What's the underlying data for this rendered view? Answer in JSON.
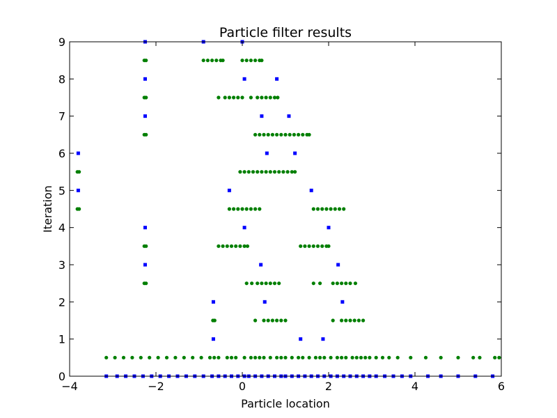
{
  "chart_data": {
    "type": "scatter",
    "title": "Particle filter results",
    "xlabel": "Particle location",
    "ylabel": "Iteration",
    "xlim": [
      -4,
      6
    ],
    "ylim": [
      0,
      9
    ],
    "x_ticks": [
      -4,
      -2,
      0,
      2,
      4,
      6
    ],
    "x_tick_labels": [
      "−4",
      "−2",
      "0",
      "2",
      "4",
      "6"
    ],
    "y_ticks": [
      0,
      1,
      2,
      3,
      4,
      5,
      6,
      7,
      8,
      9
    ],
    "y_tick_labels": [
      "0",
      "1",
      "2",
      "3",
      "4",
      "5",
      "6",
      "7",
      "8",
      "9"
    ],
    "grid": false,
    "colors": {
      "blue": "#0000ff",
      "green": "#007f00"
    },
    "series": [
      {
        "color": "blue",
        "marker": "square",
        "points": [
          {
            "x": -3.15,
            "y": 0
          },
          {
            "x": -2.9,
            "y": 0
          },
          {
            "x": -2.7,
            "y": 0
          },
          {
            "x": -2.5,
            "y": 0
          },
          {
            "x": -2.3,
            "y": 0
          },
          {
            "x": -2.1,
            "y": 0
          },
          {
            "x": -1.9,
            "y": 0
          },
          {
            "x": -1.7,
            "y": 0
          },
          {
            "x": -1.5,
            "y": 0
          },
          {
            "x": -1.3,
            "y": 0
          },
          {
            "x": -1.1,
            "y": 0
          },
          {
            "x": -0.9,
            "y": 0
          },
          {
            "x": -0.7,
            "y": 0
          },
          {
            "x": -0.55,
            "y": 0
          },
          {
            "x": -0.4,
            "y": 0
          },
          {
            "x": -0.25,
            "y": 0
          },
          {
            "x": -0.1,
            "y": 0
          },
          {
            "x": 0.05,
            "y": 0
          },
          {
            "x": 0.15,
            "y": 0
          },
          {
            "x": 0.3,
            "y": 0
          },
          {
            "x": 0.45,
            "y": 0
          },
          {
            "x": 0.6,
            "y": 0
          },
          {
            "x": 0.75,
            "y": 0
          },
          {
            "x": 0.9,
            "y": 0
          },
          {
            "x": 1.0,
            "y": 0
          },
          {
            "x": 1.15,
            "y": 0
          },
          {
            "x": 1.3,
            "y": 0
          },
          {
            "x": 1.45,
            "y": 0
          },
          {
            "x": 1.6,
            "y": 0
          },
          {
            "x": 1.75,
            "y": 0
          },
          {
            "x": 1.9,
            "y": 0
          },
          {
            "x": 2.05,
            "y": 0
          },
          {
            "x": 2.2,
            "y": 0
          },
          {
            "x": 2.35,
            "y": 0
          },
          {
            "x": 2.5,
            "y": 0
          },
          {
            "x": 2.65,
            "y": 0
          },
          {
            "x": 2.8,
            "y": 0
          },
          {
            "x": 2.95,
            "y": 0
          },
          {
            "x": 3.1,
            "y": 0
          },
          {
            "x": 3.3,
            "y": 0
          },
          {
            "x": 3.5,
            "y": 0
          },
          {
            "x": 3.7,
            "y": 0
          },
          {
            "x": 3.9,
            "y": 0
          },
          {
            "x": 4.3,
            "y": 0
          },
          {
            "x": 4.6,
            "y": 0
          },
          {
            "x": 5.0,
            "y": 0
          },
          {
            "x": 5.4,
            "y": 0
          },
          {
            "x": 5.8,
            "y": 0
          },
          {
            "x": -0.67,
            "y": 1
          },
          {
            "x": 1.35,
            "y": 1
          },
          {
            "x": 1.87,
            "y": 1
          },
          {
            "x": -0.67,
            "y": 2
          },
          {
            "x": 0.52,
            "y": 2
          },
          {
            "x": 2.32,
            "y": 2
          },
          {
            "x": -2.25,
            "y": 3
          },
          {
            "x": 0.43,
            "y": 3
          },
          {
            "x": 2.22,
            "y": 3
          },
          {
            "x": -2.25,
            "y": 4
          },
          {
            "x": 0.05,
            "y": 4
          },
          {
            "x": 2.0,
            "y": 4
          },
          {
            "x": -3.8,
            "y": 5
          },
          {
            "x": -0.3,
            "y": 5
          },
          {
            "x": 1.6,
            "y": 5
          },
          {
            "x": -3.8,
            "y": 6
          },
          {
            "x": 0.57,
            "y": 6
          },
          {
            "x": 1.22,
            "y": 6
          },
          {
            "x": -2.25,
            "y": 7
          },
          {
            "x": 0.45,
            "y": 7
          },
          {
            "x": 1.08,
            "y": 7
          },
          {
            "x": -2.25,
            "y": 8
          },
          {
            "x": 0.05,
            "y": 8
          },
          {
            "x": 0.8,
            "y": 8
          },
          {
            "x": -2.25,
            "y": 9
          },
          {
            "x": -0.9,
            "y": 9
          },
          {
            "x": 0.0,
            "y": 9
          }
        ]
      },
      {
        "color": "green",
        "marker": "circle",
        "points": [
          {
            "x": -3.15,
            "y": 0.5
          },
          {
            "x": -2.95,
            "y": 0.5
          },
          {
            "x": -2.75,
            "y": 0.5
          },
          {
            "x": -2.55,
            "y": 0.5
          },
          {
            "x": -2.35,
            "y": 0.5
          },
          {
            "x": -2.15,
            "y": 0.5
          },
          {
            "x": -1.95,
            "y": 0.5
          },
          {
            "x": -1.75,
            "y": 0.5
          },
          {
            "x": -1.55,
            "y": 0.5
          },
          {
            "x": -1.35,
            "y": 0.5
          },
          {
            "x": -1.15,
            "y": 0.5
          },
          {
            "x": -0.95,
            "y": 0.5
          },
          {
            "x": -0.75,
            "y": 0.5
          },
          {
            "x": -0.65,
            "y": 0.5
          },
          {
            "x": -0.55,
            "y": 0.5
          },
          {
            "x": -0.35,
            "y": 0.5
          },
          {
            "x": -0.25,
            "y": 0.5
          },
          {
            "x": -0.15,
            "y": 0.5
          },
          {
            "x": 0.05,
            "y": 0.5
          },
          {
            "x": 0.2,
            "y": 0.5
          },
          {
            "x": 0.3,
            "y": 0.5
          },
          {
            "x": 0.4,
            "y": 0.5
          },
          {
            "x": 0.5,
            "y": 0.5
          },
          {
            "x": 0.65,
            "y": 0.5
          },
          {
            "x": 0.8,
            "y": 0.5
          },
          {
            "x": 0.9,
            "y": 0.5
          },
          {
            "x": 1.0,
            "y": 0.5
          },
          {
            "x": 1.15,
            "y": 0.5
          },
          {
            "x": 1.3,
            "y": 0.5
          },
          {
            "x": 1.4,
            "y": 0.5
          },
          {
            "x": 1.55,
            "y": 0.5
          },
          {
            "x": 1.7,
            "y": 0.5
          },
          {
            "x": 1.8,
            "y": 0.5
          },
          {
            "x": 1.9,
            "y": 0.5
          },
          {
            "x": 2.05,
            "y": 0.5
          },
          {
            "x": 2.2,
            "y": 0.5
          },
          {
            "x": 2.3,
            "y": 0.5
          },
          {
            "x": 2.4,
            "y": 0.5
          },
          {
            "x": 2.55,
            "y": 0.5
          },
          {
            "x": 2.65,
            "y": 0.5
          },
          {
            "x": 2.75,
            "y": 0.5
          },
          {
            "x": 2.85,
            "y": 0.5
          },
          {
            "x": 2.95,
            "y": 0.5
          },
          {
            "x": 3.1,
            "y": 0.5
          },
          {
            "x": 3.25,
            "y": 0.5
          },
          {
            "x": 3.4,
            "y": 0.5
          },
          {
            "x": 3.6,
            "y": 0.5
          },
          {
            "x": 3.9,
            "y": 0.5
          },
          {
            "x": 4.25,
            "y": 0.5
          },
          {
            "x": 4.6,
            "y": 0.5
          },
          {
            "x": 5.0,
            "y": 0.5
          },
          {
            "x": 5.35,
            "y": 0.5
          },
          {
            "x": 5.5,
            "y": 0.5
          },
          {
            "x": 5.85,
            "y": 0.5
          },
          {
            "x": 5.95,
            "y": 0.5
          },
          {
            "x": -0.68,
            "y": 1.5
          },
          {
            "x": -0.64,
            "y": 1.5
          },
          {
            "x": 0.3,
            "y": 1.5
          },
          {
            "x": 0.5,
            "y": 1.5
          },
          {
            "x": 0.6,
            "y": 1.5
          },
          {
            "x": 0.7,
            "y": 1.5
          },
          {
            "x": 0.8,
            "y": 1.5
          },
          {
            "x": 0.9,
            "y": 1.5
          },
          {
            "x": 1.0,
            "y": 1.5
          },
          {
            "x": 2.1,
            "y": 1.5
          },
          {
            "x": 2.3,
            "y": 1.5
          },
          {
            "x": 2.4,
            "y": 1.5
          },
          {
            "x": 2.5,
            "y": 1.5
          },
          {
            "x": 2.6,
            "y": 1.5
          },
          {
            "x": 2.7,
            "y": 1.5
          },
          {
            "x": 2.8,
            "y": 1.5
          },
          {
            "x": -2.27,
            "y": 2.5
          },
          {
            "x": -2.23,
            "y": 2.5
          },
          {
            "x": 0.1,
            "y": 2.5
          },
          {
            "x": 0.22,
            "y": 2.5
          },
          {
            "x": 0.35,
            "y": 2.5
          },
          {
            "x": 0.45,
            "y": 2.5
          },
          {
            "x": 0.55,
            "y": 2.5
          },
          {
            "x": 0.65,
            "y": 2.5
          },
          {
            "x": 0.75,
            "y": 2.5
          },
          {
            "x": 0.85,
            "y": 2.5
          },
          {
            "x": 1.65,
            "y": 2.5
          },
          {
            "x": 1.8,
            "y": 2.5
          },
          {
            "x": 2.1,
            "y": 2.5
          },
          {
            "x": 2.2,
            "y": 2.5
          },
          {
            "x": 2.3,
            "y": 2.5
          },
          {
            "x": 2.4,
            "y": 2.5
          },
          {
            "x": 2.5,
            "y": 2.5
          },
          {
            "x": 2.62,
            "y": 2.5
          },
          {
            "x": -2.27,
            "y": 3.5
          },
          {
            "x": -2.23,
            "y": 3.5
          },
          {
            "x": -0.55,
            "y": 3.5
          },
          {
            "x": -0.45,
            "y": 3.5
          },
          {
            "x": -0.35,
            "y": 3.5
          },
          {
            "x": -0.25,
            "y": 3.5
          },
          {
            "x": -0.15,
            "y": 3.5
          },
          {
            "x": -0.05,
            "y": 3.5
          },
          {
            "x": 0.05,
            "y": 3.5
          },
          {
            "x": 0.12,
            "y": 3.5
          },
          {
            "x": 1.35,
            "y": 3.5
          },
          {
            "x": 1.45,
            "y": 3.5
          },
          {
            "x": 1.55,
            "y": 3.5
          },
          {
            "x": 1.65,
            "y": 3.5
          },
          {
            "x": 1.75,
            "y": 3.5
          },
          {
            "x": 1.85,
            "y": 3.5
          },
          {
            "x": 1.95,
            "y": 3.5
          },
          {
            "x": 2.0,
            "y": 3.5
          },
          {
            "x": -3.82,
            "y": 4.5
          },
          {
            "x": -3.78,
            "y": 4.5
          },
          {
            "x": -0.3,
            "y": 4.5
          },
          {
            "x": -0.2,
            "y": 4.5
          },
          {
            "x": -0.1,
            "y": 4.5
          },
          {
            "x": 0.0,
            "y": 4.5
          },
          {
            "x": 0.1,
            "y": 4.5
          },
          {
            "x": 0.2,
            "y": 4.5
          },
          {
            "x": 0.3,
            "y": 4.5
          },
          {
            "x": 0.4,
            "y": 4.5
          },
          {
            "x": 1.65,
            "y": 4.5
          },
          {
            "x": 1.75,
            "y": 4.5
          },
          {
            "x": 1.85,
            "y": 4.5
          },
          {
            "x": 1.95,
            "y": 4.5
          },
          {
            "x": 2.05,
            "y": 4.5
          },
          {
            "x": 2.15,
            "y": 4.5
          },
          {
            "x": 2.25,
            "y": 4.5
          },
          {
            "x": 2.35,
            "y": 4.5
          },
          {
            "x": -3.82,
            "y": 5.5
          },
          {
            "x": -3.78,
            "y": 5.5
          },
          {
            "x": -0.05,
            "y": 5.5
          },
          {
            "x": 0.05,
            "y": 5.5
          },
          {
            "x": 0.15,
            "y": 5.5
          },
          {
            "x": 0.25,
            "y": 5.5
          },
          {
            "x": 0.35,
            "y": 5.5
          },
          {
            "x": 0.45,
            "y": 5.5
          },
          {
            "x": 0.55,
            "y": 5.5
          },
          {
            "x": 0.65,
            "y": 5.5
          },
          {
            "x": 0.75,
            "y": 5.5
          },
          {
            "x": 0.85,
            "y": 5.5
          },
          {
            "x": 0.95,
            "y": 5.5
          },
          {
            "x": 1.05,
            "y": 5.5
          },
          {
            "x": 1.15,
            "y": 5.5
          },
          {
            "x": 1.22,
            "y": 5.5
          },
          {
            "x": -2.27,
            "y": 6.5
          },
          {
            "x": -2.23,
            "y": 6.5
          },
          {
            "x": 0.3,
            "y": 6.5
          },
          {
            "x": 0.4,
            "y": 6.5
          },
          {
            "x": 0.5,
            "y": 6.5
          },
          {
            "x": 0.6,
            "y": 6.5
          },
          {
            "x": 0.7,
            "y": 6.5
          },
          {
            "x": 0.8,
            "y": 6.5
          },
          {
            "x": 0.9,
            "y": 6.5
          },
          {
            "x": 1.0,
            "y": 6.5
          },
          {
            "x": 1.1,
            "y": 6.5
          },
          {
            "x": 1.2,
            "y": 6.5
          },
          {
            "x": 1.3,
            "y": 6.5
          },
          {
            "x": 1.4,
            "y": 6.5
          },
          {
            "x": 1.5,
            "y": 6.5
          },
          {
            "x": 1.55,
            "y": 6.5
          },
          {
            "x": -2.27,
            "y": 7.5
          },
          {
            "x": -2.23,
            "y": 7.5
          },
          {
            "x": -0.55,
            "y": 7.5
          },
          {
            "x": -0.4,
            "y": 7.5
          },
          {
            "x": -0.3,
            "y": 7.5
          },
          {
            "x": -0.2,
            "y": 7.5
          },
          {
            "x": -0.1,
            "y": 7.5
          },
          {
            "x": 0.0,
            "y": 7.5
          },
          {
            "x": 0.2,
            "y": 7.5
          },
          {
            "x": 0.35,
            "y": 7.5
          },
          {
            "x": 0.45,
            "y": 7.5
          },
          {
            "x": 0.55,
            "y": 7.5
          },
          {
            "x": 0.65,
            "y": 7.5
          },
          {
            "x": 0.75,
            "y": 7.5
          },
          {
            "x": 0.82,
            "y": 7.5
          },
          {
            "x": -2.27,
            "y": 8.5
          },
          {
            "x": -2.23,
            "y": 8.5
          },
          {
            "x": -0.9,
            "y": 8.5
          },
          {
            "x": -0.8,
            "y": 8.5
          },
          {
            "x": -0.7,
            "y": 8.5
          },
          {
            "x": -0.6,
            "y": 8.5
          },
          {
            "x": -0.5,
            "y": 8.5
          },
          {
            "x": -0.45,
            "y": 8.5
          },
          {
            "x": 0.0,
            "y": 8.5
          },
          {
            "x": 0.1,
            "y": 8.5
          },
          {
            "x": 0.2,
            "y": 8.5
          },
          {
            "x": 0.3,
            "y": 8.5
          },
          {
            "x": 0.4,
            "y": 8.5
          },
          {
            "x": 0.45,
            "y": 8.5
          }
        ]
      }
    ]
  }
}
